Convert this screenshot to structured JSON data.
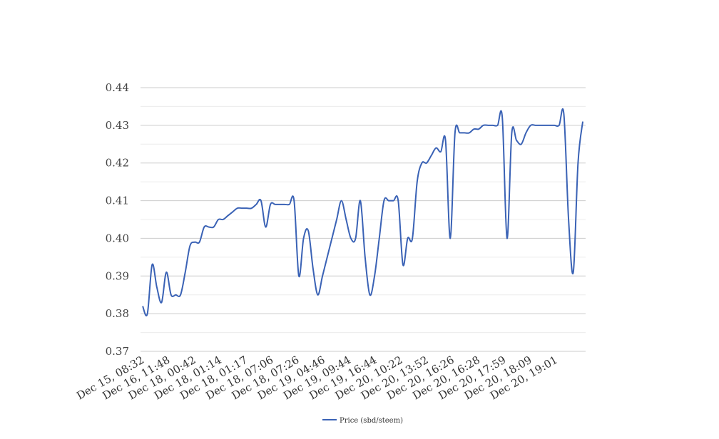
{
  "chart_data": {
    "type": "line",
    "title": "",
    "xlabel": "",
    "ylabel": "",
    "ylim": [
      0.37,
      0.44
    ],
    "y_ticks": [
      "0.37",
      "0.38",
      "0.39",
      "0.40",
      "0.41",
      "0.42",
      "0.43",
      "0.44"
    ],
    "x_tick_labels": [
      "Dec 15, 08:32",
      "Dec 16, 11:48",
      "Dec 18, 00:42",
      "Dec 18, 01:14",
      "Dec 18, 01:17",
      "Dec 18, 07:06",
      "Dec 18, 07:26",
      "Dec 19, 04:46",
      "Dec 19, 09:44",
      "Dec 19, 16:44",
      "Dec 20, 10:22",
      "Dec 20, 13:52",
      "Dec 20, 16:26",
      "Dec 20, 16:28",
      "Dec 20, 17:59",
      "Dec 20, 18:09",
      "Dec 20, 19:01"
    ],
    "grid": true,
    "legend_position": "bottom-center",
    "series": [
      {
        "name": "Price (sbd/steem)",
        "color": "#3a62b5",
        "values": [
          0.382,
          0.38,
          0.393,
          0.387,
          0.383,
          0.391,
          0.385,
          0.385,
          0.385,
          0.391,
          0.398,
          0.399,
          0.399,
          0.403,
          0.403,
          0.403,
          0.405,
          0.405,
          0.406,
          0.407,
          0.408,
          0.408,
          0.408,
          0.408,
          0.409,
          0.41,
          0.403,
          0.409,
          0.409,
          0.409,
          0.409,
          0.409,
          0.41,
          0.39,
          0.4,
          0.402,
          0.392,
          0.385,
          0.39,
          0.395,
          0.4,
          0.405,
          0.41,
          0.405,
          0.4,
          0.4,
          0.41,
          0.395,
          0.385,
          0.39,
          0.4,
          0.41,
          0.41,
          0.41,
          0.41,
          0.393,
          0.4,
          0.4,
          0.415,
          0.42,
          0.42,
          0.422,
          0.424,
          0.423,
          0.426,
          0.4,
          0.428,
          0.428,
          0.428,
          0.428,
          0.429,
          0.429,
          0.43,
          0.43,
          0.43,
          0.43,
          0.432,
          0.4,
          0.428,
          0.426,
          0.425,
          0.428,
          0.43,
          0.43,
          0.43,
          0.43,
          0.43,
          0.43,
          0.43,
          0.433,
          0.405,
          0.391,
          0.42,
          0.431
        ]
      }
    ]
  }
}
